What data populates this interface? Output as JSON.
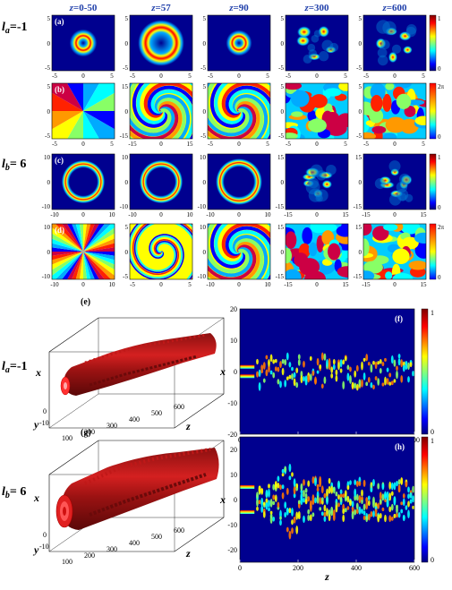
{
  "columns": [
    "z=0-50",
    "z=57",
    "z=90",
    "z=300",
    "z=600"
  ],
  "row_labels": {
    "la": "l_a=-1",
    "lb": "l_b=6"
  },
  "panel_letters": [
    "(a)",
    "(b)",
    "(c)",
    "(d)",
    "(e)",
    "(f)",
    "(g)",
    "(h)"
  ],
  "colorbar": {
    "intensity_ticks": [
      "1",
      "0"
    ],
    "phase_ticks": [
      "2π",
      "0"
    ]
  },
  "row_a": {
    "y_ticks": [
      [
        "5",
        "0",
        "-5"
      ],
      [
        "5",
        "0",
        "-5"
      ],
      [
        "5",
        "0",
        "-5"
      ],
      [
        "5",
        "0",
        "-5"
      ],
      [
        "5",
        "0",
        "-5"
      ]
    ],
    "x_ticks": [
      [
        "-5",
        "0",
        "5"
      ],
      [
        "-5",
        "0",
        "5"
      ],
      [
        "-5",
        "0",
        "5"
      ],
      [
        "-5",
        "0",
        "5"
      ],
      [
        "-5",
        "0",
        "5"
      ]
    ]
  },
  "row_b": {
    "y_ticks": [
      [
        "5",
        "0",
        "-5"
      ],
      [
        "15",
        "0",
        "-15"
      ],
      [
        "5",
        "0",
        "-5"
      ],
      [
        "5",
        "0",
        "-5"
      ],
      [
        "5",
        "0",
        "-5"
      ]
    ],
    "x_ticks": [
      [
        "-5",
        "0",
        "5"
      ],
      [
        "-15",
        "0",
        "15"
      ],
      [
        "-5",
        "0",
        "5"
      ],
      [
        "-5",
        "0",
        "5"
      ],
      [
        "-5",
        "0",
        "5"
      ]
    ]
  },
  "row_c": {
    "y_ticks": [
      [
        "10",
        "0",
        "-10"
      ],
      [
        "10",
        "0",
        "-10"
      ],
      [
        "10",
        "0",
        "-10"
      ],
      [
        "15",
        "0",
        "-15"
      ],
      [
        "15",
        "0",
        "-15"
      ]
    ],
    "x_ticks": [
      [
        "-10",
        "0",
        "10"
      ],
      [
        "-10",
        "0",
        "10"
      ],
      [
        "-10",
        "0",
        "10"
      ],
      [
        "-15",
        "0",
        "15"
      ],
      [
        "-15",
        "0",
        "15"
      ]
    ]
  },
  "row_d": {
    "y_ticks": [
      [
        "10",
        "0",
        "-10"
      ],
      [
        "5",
        "0",
        "-5"
      ],
      [
        "10",
        "0",
        "-10"
      ],
      [
        "15",
        "0",
        "-15"
      ],
      [
        "15",
        "0",
        "-15"
      ]
    ],
    "x_ticks": [
      [
        "-10",
        "0",
        "10"
      ],
      [
        "-5",
        "0",
        "5"
      ],
      [
        "-10",
        "0",
        "10"
      ],
      [
        "-15",
        "0",
        "15"
      ],
      [
        "-15",
        "0",
        "15"
      ]
    ]
  },
  "panel_e": {
    "x_label": "x",
    "y_label": "y",
    "z_label": "z",
    "z_ticks": [
      "100",
      "200",
      "300",
      "400",
      "500",
      "600"
    ],
    "y_ticks": [
      "0",
      "-10"
    ]
  },
  "panel_g": {
    "x_label": "x",
    "y_label": "y",
    "z_label": "z",
    "z_ticks": [
      "100",
      "200",
      "300",
      "400",
      "500",
      "600"
    ],
    "y_ticks": [
      "0",
      "-10"
    ]
  },
  "chart_data": [
    {
      "type": "heatmap",
      "panel": "(f)",
      "xlabel": "z",
      "ylabel": "x",
      "xlim": [
        0,
        600
      ],
      "ylim": [
        -20,
        20
      ],
      "x_ticks": [
        "0",
        "200",
        "400",
        "600"
      ],
      "y_ticks": [
        "20",
        "10",
        "0",
        "-10",
        "-20"
      ],
      "colorbar_ticks": [
        "1",
        "0"
      ]
    },
    {
      "type": "heatmap",
      "panel": "(h)",
      "xlabel": "z",
      "ylabel": "x",
      "xlim": [
        0,
        600
      ],
      "ylim": [
        -25,
        25
      ],
      "x_ticks": [
        "0",
        "200",
        "400",
        "600"
      ],
      "y_ticks": [
        "20",
        "10",
        "0",
        "-10",
        "-20"
      ],
      "colorbar_ticks": [
        "1",
        "0"
      ]
    }
  ]
}
